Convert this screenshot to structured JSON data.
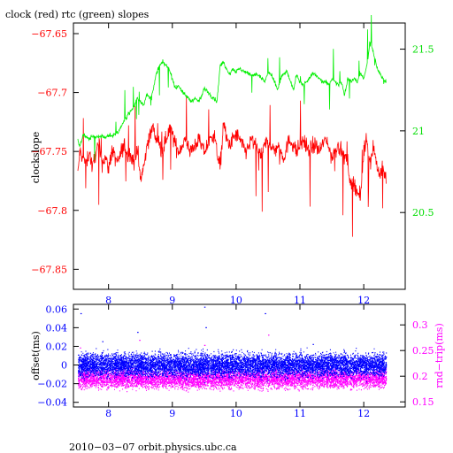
{
  "chart_data": [
    {
      "type": "line",
      "title": "clock (red) rtc (green) slopes",
      "xlabel": "",
      "ylabel": "clockslope",
      "y2label": "",
      "xlim": [
        7.45,
        12.65
      ],
      "ylim": [
        -67.867,
        -67.641
      ],
      "y2lim": [
        20.03,
        21.66
      ],
      "x_ticks": [
        8,
        9,
        10,
        11,
        12
      ],
      "x_tick_labels": [
        "8",
        "9",
        "10",
        "11",
        "12"
      ],
      "y_ticks": [
        -67.85,
        -67.8,
        -67.75,
        -67.7,
        -67.65
      ],
      "y_tick_labels": [
        "−67.85",
        "−67.8",
        "−67.75",
        "−67.7",
        "−67.65"
      ],
      "y2_ticks": [
        20.5,
        21,
        21.5
      ],
      "y2_tick_labels": [
        "20.5",
        "21",
        "21.5"
      ],
      "grid": false,
      "legend": "none",
      "colors": {
        "clock": "#ff0000",
        "rtc": "#00ee00",
        "axis_left": "#ff0000",
        "axis_right": "#00dd00"
      },
      "series": [
        {
          "axis": "left",
          "color": "#ff0000",
          "x": [
            7.52,
            7.55,
            7.6,
            7.65,
            7.7,
            7.75,
            7.8,
            7.85,
            7.9,
            7.95,
            8.0,
            8.05,
            8.1,
            8.15,
            8.2,
            8.25,
            8.3,
            8.35,
            8.4,
            8.45,
            8.5,
            8.55,
            8.6,
            8.65,
            8.7,
            8.75,
            8.8,
            8.85,
            8.9,
            8.95,
            9.0,
            9.05,
            9.1,
            9.15,
            9.2,
            9.25,
            9.3,
            9.35,
            9.4,
            9.45,
            9.5,
            9.55,
            9.6,
            9.65,
            9.7,
            9.75,
            9.8,
            9.85,
            9.9,
            9.95,
            10.0,
            10.05,
            10.1,
            10.15,
            10.2,
            10.25,
            10.3,
            10.35,
            10.4,
            10.45,
            10.5,
            10.55,
            10.6,
            10.65,
            10.7,
            10.75,
            10.8,
            10.85,
            10.9,
            10.95,
            11.0,
            11.05,
            11.1,
            11.15,
            11.2,
            11.25,
            11.3,
            11.35,
            11.4,
            11.45,
            11.5,
            11.55,
            11.6,
            11.65,
            11.7,
            11.75,
            11.8,
            11.85,
            11.9,
            11.95,
            12.0,
            12.05,
            12.1,
            12.15,
            12.2,
            12.25,
            12.3,
            12.35
          ],
          "y": [
            -67.77,
            -67.75,
            -67.755,
            -67.76,
            -67.75,
            -67.765,
            -67.75,
            -67.745,
            -67.76,
            -67.755,
            -67.765,
            -67.75,
            -67.755,
            -67.76,
            -67.75,
            -67.745,
            -67.755,
            -67.75,
            -67.76,
            -67.745,
            -67.775,
            -67.765,
            -67.745,
            -67.735,
            -67.73,
            -67.74,
            -67.745,
            -67.75,
            -67.74,
            -67.73,
            -67.735,
            -67.745,
            -67.75,
            -67.745,
            -67.74,
            -67.745,
            -67.75,
            -67.745,
            -67.74,
            -67.745,
            -67.75,
            -67.745,
            -67.74,
            -67.735,
            -67.75,
            -67.765,
            -67.725,
            -67.74,
            -67.745,
            -67.74,
            -67.735,
            -67.74,
            -67.745,
            -67.75,
            -67.745,
            -67.74,
            -67.745,
            -67.75,
            -67.755,
            -67.745,
            -67.74,
            -67.745,
            -67.75,
            -67.745,
            -67.75,
            -67.755,
            -67.745,
            -67.74,
            -67.745,
            -67.75,
            -67.745,
            -67.74,
            -67.745,
            -67.75,
            -67.745,
            -67.745,
            -67.75,
            -67.745,
            -67.74,
            -67.745,
            -67.755,
            -67.75,
            -67.745,
            -67.75,
            -67.755,
            -67.76,
            -67.78,
            -67.775,
            -67.785,
            -67.79,
            -67.75,
            -67.74,
            -67.76,
            -67.745,
            -67.76,
            -67.77,
            -67.765,
            -67.775
          ]
        },
        {
          "axis": "right",
          "color": "#00ee00",
          "x": [
            7.52,
            7.55,
            7.6,
            7.65,
            7.7,
            7.75,
            7.8,
            7.85,
            7.9,
            7.95,
            8.0,
            8.05,
            8.1,
            8.15,
            8.2,
            8.25,
            8.3,
            8.35,
            8.4,
            8.45,
            8.5,
            8.55,
            8.6,
            8.65,
            8.7,
            8.75,
            8.8,
            8.85,
            8.9,
            8.95,
            9.0,
            9.05,
            9.1,
            9.15,
            9.2,
            9.25,
            9.3,
            9.35,
            9.4,
            9.45,
            9.5,
            9.55,
            9.6,
            9.65,
            9.7,
            9.75,
            9.8,
            9.85,
            9.9,
            9.95,
            10.0,
            10.05,
            10.1,
            10.15,
            10.2,
            10.25,
            10.3,
            10.35,
            10.4,
            10.45,
            10.5,
            10.55,
            10.6,
            10.65,
            10.7,
            10.75,
            10.8,
            10.85,
            10.9,
            10.95,
            11.0,
            11.05,
            11.1,
            11.15,
            11.2,
            11.25,
            11.3,
            11.35,
            11.4,
            11.45,
            11.5,
            11.55,
            11.6,
            11.65,
            11.7,
            11.75,
            11.8,
            11.85,
            11.9,
            11.95,
            12.0,
            12.05,
            12.1,
            12.15,
            12.2,
            12.25,
            12.3,
            12.35
          ],
          "y": [
            20.95,
            20.9,
            20.98,
            20.96,
            20.95,
            20.97,
            20.96,
            20.96,
            20.97,
            20.96,
            20.97,
            20.97,
            20.98,
            20.99,
            21.03,
            21.06,
            21.1,
            21.12,
            21.15,
            21.2,
            21.18,
            21.16,
            21.22,
            21.2,
            21.25,
            21.35,
            21.4,
            21.42,
            21.4,
            21.38,
            21.32,
            21.26,
            21.28,
            21.24,
            21.22,
            21.2,
            21.18,
            21.2,
            21.18,
            21.2,
            21.26,
            21.24,
            21.22,
            21.2,
            21.18,
            21.4,
            21.42,
            21.38,
            21.35,
            21.38,
            21.36,
            21.38,
            21.37,
            21.36,
            21.35,
            21.34,
            21.35,
            21.34,
            21.32,
            21.3,
            21.36,
            21.34,
            21.3,
            21.25,
            21.32,
            21.35,
            21.36,
            21.3,
            21.25,
            21.35,
            21.3,
            21.28,
            21.3,
            21.32,
            21.35,
            21.34,
            21.32,
            21.3,
            21.3,
            21.28,
            21.32,
            21.3,
            21.28,
            21.3,
            21.22,
            21.32,
            21.3,
            21.32,
            21.3,
            21.35,
            21.32,
            21.4,
            21.55,
            21.48,
            21.4,
            21.35,
            21.32,
            21.3
          ]
        }
      ]
    },
    {
      "type": "scatter",
      "title": "",
      "xlabel": "",
      "ylabel": "offset(ms)",
      "y2label": "rnd−trip(ms)",
      "xlim": [
        7.45,
        12.65
      ],
      "ylim": [
        -0.045,
        0.065
      ],
      "y2lim": [
        0.14,
        0.34
      ],
      "x_ticks": [
        8,
        9,
        10,
        11,
        12
      ],
      "x_tick_labels": [
        "8",
        "9",
        "10",
        "11",
        "12"
      ],
      "y_ticks": [
        -0.04,
        -0.02,
        0,
        0.02,
        0.04,
        0.06
      ],
      "y_tick_labels": [
        "−0.04",
        "−0.02",
        "0",
        "0.02",
        "0.04",
        "0.06"
      ],
      "y2_ticks": [
        0.15,
        0.2,
        0.25,
        0.3
      ],
      "y2_tick_labels": [
        "0.15",
        "0.2",
        "0.25",
        "0.3"
      ],
      "grid": false,
      "legend": "none",
      "colors": {
        "offset": "#0000ff",
        "rndtrip": "#ff00ff"
      },
      "series": [
        {
          "axis": "left",
          "color": "#0000ff",
          "x_range": [
            7.52,
            12.35
          ],
          "y_center": 0.0,
          "y_spread": 0.012,
          "outliers_x": [
            7.56,
            8.45,
            9.5,
            9.52,
            10.45,
            7.9,
            11.2
          ],
          "outliers_y": [
            0.055,
            0.035,
            0.062,
            0.04,
            0.055,
            0.025,
            0.022
          ]
        },
        {
          "axis": "right",
          "color": "#ff00ff",
          "x_range": [
            7.52,
            12.35
          ],
          "y_center": 0.195,
          "y_spread": 0.018,
          "outliers_x": [
            7.55,
            8.48,
            9.5,
            10.5
          ],
          "outliers_y": [
            0.255,
            0.27,
            0.26,
            0.28
          ]
        }
      ]
    }
  ],
  "footer": {
    "text": "2010−03−07  orbit.physics.ubc.ca"
  }
}
